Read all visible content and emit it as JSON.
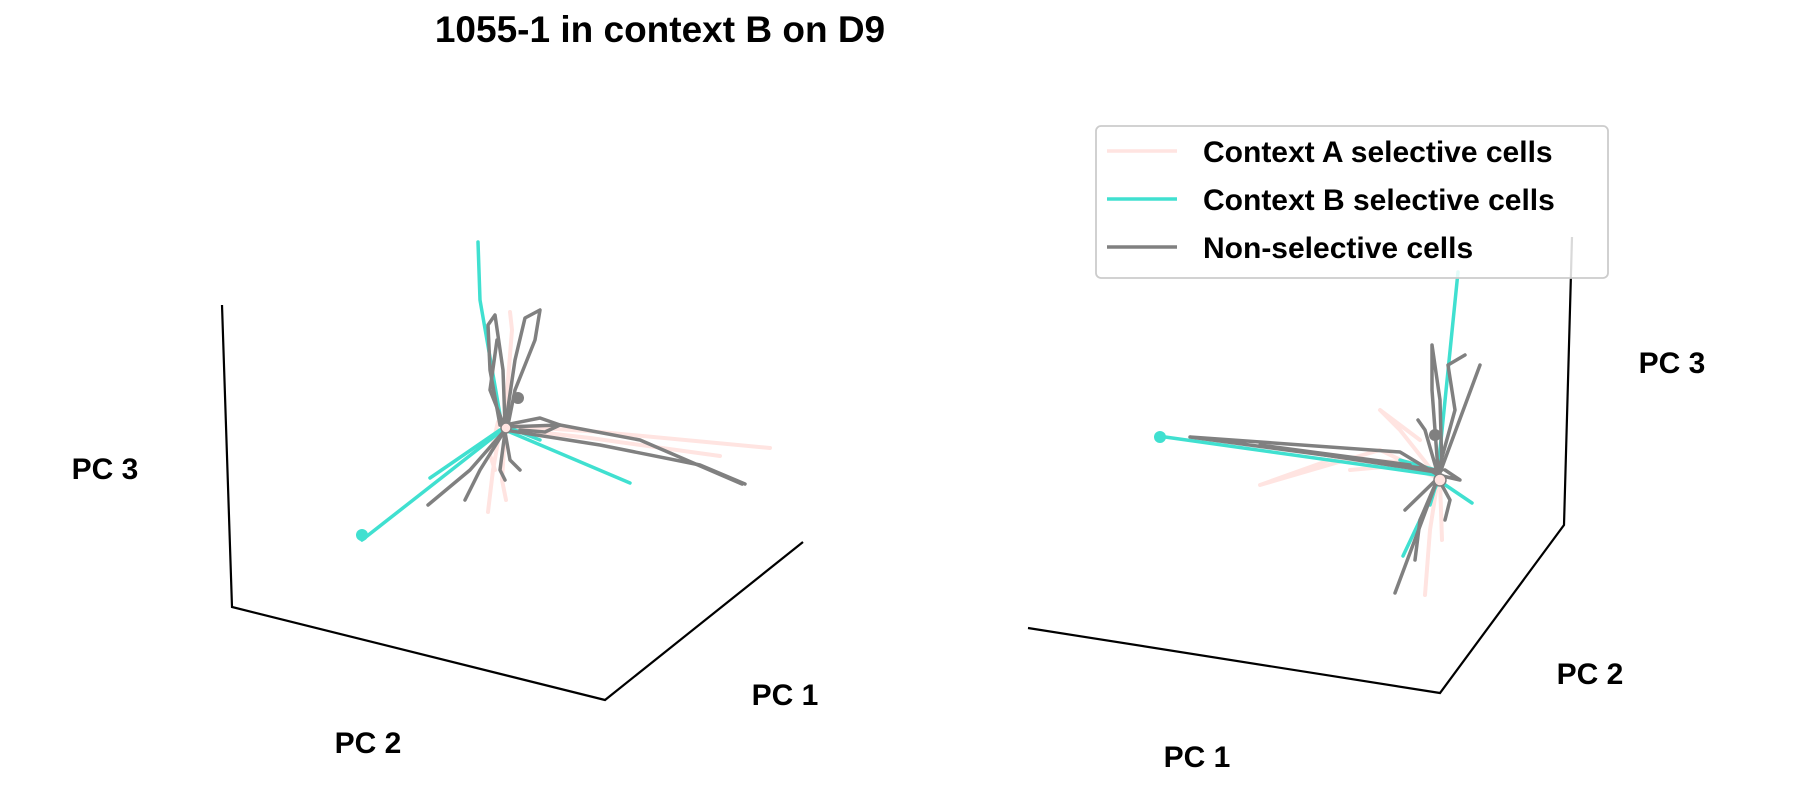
{
  "chart_data": {
    "type": "line",
    "title": "1055-1 in context B on D9",
    "colors": {
      "context_a": "#ffe4e1",
      "context_b": "#40e0d0",
      "non_selective": "#808080"
    },
    "legend": {
      "placement": "top-right",
      "entries": [
        "Context A selective cells",
        "Context B selective cells",
        "Non-selective cells"
      ]
    },
    "panels": [
      {
        "name": "left-3d-view",
        "xlabel": "PC 1",
        "ylabel": "PC 2",
        "zlabel": "PC 3",
        "grid": false
      },
      {
        "name": "right-3d-view",
        "xlabel": "PC 1",
        "ylabel": "PC 2",
        "zlabel": "PC 3",
        "grid": false
      }
    ]
  }
}
